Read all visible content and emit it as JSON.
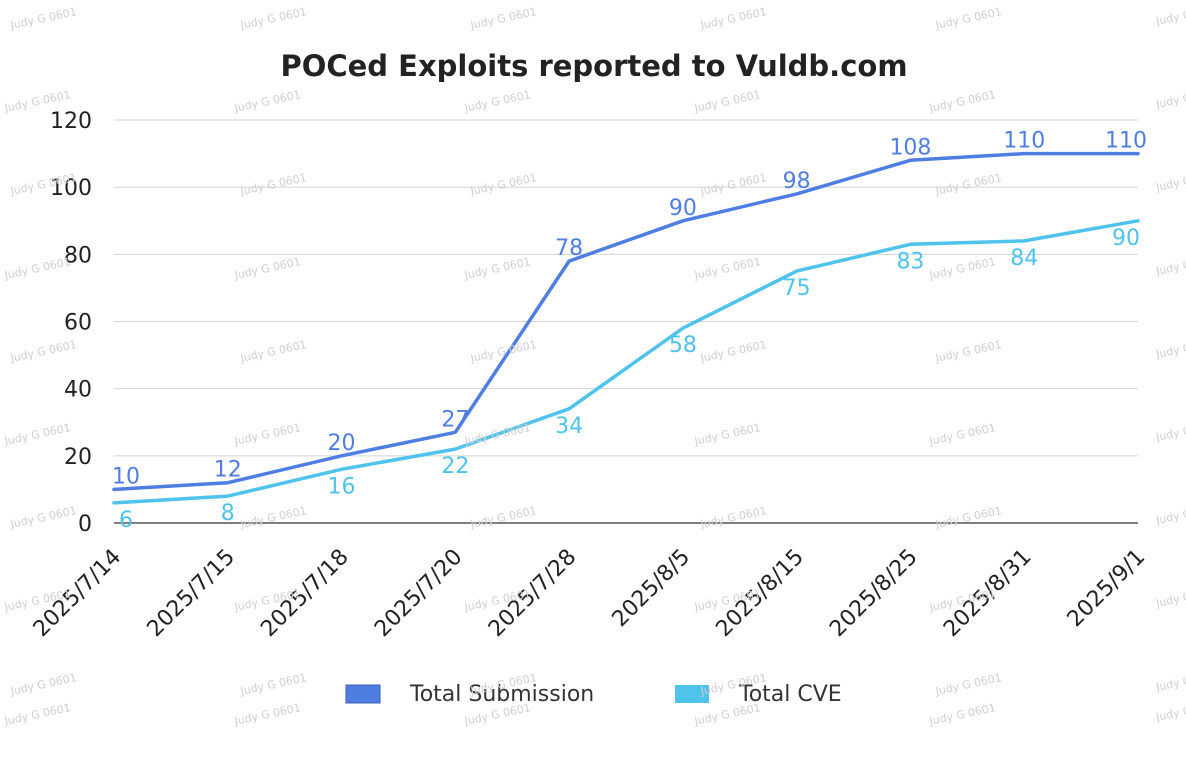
{
  "watermark": "Judy G 0601",
  "chart_data": {
    "type": "line",
    "title": "POCed Exploits reported to Vuldb.com",
    "xlabel": "",
    "ylabel": "",
    "categories": [
      "2025/7/14",
      "2025/7/15",
      "2025/7/18",
      "2025/7/20",
      "2025/7/28",
      "2025/8/5",
      "2025/8/15",
      "2025/8/25",
      "2025/8/31",
      "2025/9/1"
    ],
    "ylim": [
      0,
      120
    ],
    "yticks": [
      0,
      20,
      40,
      60,
      80,
      100,
      120
    ],
    "grid": true,
    "legend_position": "bottom",
    "series": [
      {
        "name": "Total Submission",
        "color": "#4f7ee3",
        "values": [
          10,
          12,
          20,
          27,
          78,
          90,
          98,
          108,
          110,
          110
        ]
      },
      {
        "name": "Total CVE",
        "color": "#4fc3ec",
        "values": [
          6,
          8,
          16,
          22,
          34,
          58,
          75,
          83,
          84,
          90
        ]
      }
    ]
  }
}
